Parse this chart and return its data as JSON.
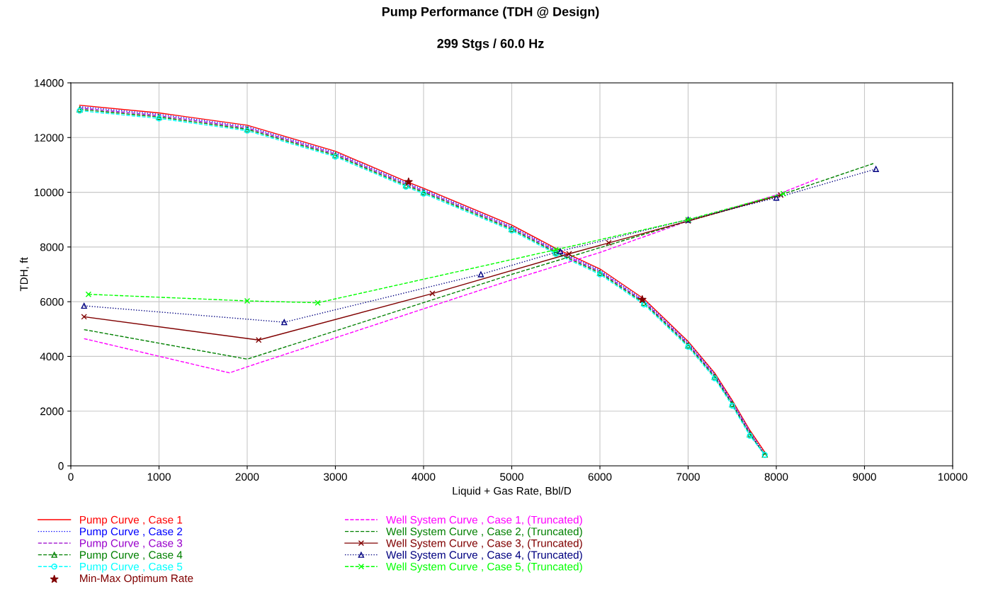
{
  "chart_data": {
    "type": "line",
    "title": "Pump Performance (TDH @ Design)",
    "subtitle": "299 Stgs / 60.0 Hz",
    "xlabel": "Liquid + Gas Rate, Bbl/D",
    "ylabel": "TDH, ft",
    "xlim": [
      0,
      10000
    ],
    "xticks": [
      0,
      1000,
      2000,
      3000,
      4000,
      5000,
      6000,
      7000,
      8000,
      9000,
      10000
    ],
    "ylim": [
      0,
      14000
    ],
    "yticks": [
      0,
      2000,
      4000,
      6000,
      8000,
      10000,
      12000,
      14000
    ],
    "grid": true,
    "legend": "bottom",
    "series": [
      {
        "name": "Pump Curve , Case 1",
        "color": "#ff0000",
        "line_style": "solid",
        "marker": "none",
        "x": [
          100,
          1000,
          2000,
          3000,
          3800,
          4000,
          5000,
          5500,
          6000,
          6500,
          7000,
          7300,
          7500,
          7700,
          7880
        ],
        "values": [
          13180,
          12900,
          12450,
          11500,
          10400,
          10150,
          8800,
          7950,
          7200,
          6100,
          4550,
          3400,
          2400,
          1300,
          450
        ]
      },
      {
        "name": "Pump Curve , Case 2",
        "color": "#0000ff",
        "line_style": "dotted",
        "marker": "none",
        "x": [
          100,
          1000,
          2000,
          3000,
          3800,
          4000,
          5000,
          5500,
          6000,
          6500,
          7000,
          7300,
          7500,
          7700,
          7870
        ],
        "values": [
          13130,
          12850,
          12400,
          11450,
          10350,
          10100,
          8750,
          7900,
          7150,
          6050,
          4500,
          3350,
          2350,
          1250,
          430
        ]
      },
      {
        "name": "Pump Curve , Case 3",
        "color": "#9900cc",
        "line_style": "dashed",
        "marker": "none",
        "x": [
          100,
          1000,
          2000,
          3000,
          3800,
          4000,
          5000,
          5500,
          6000,
          6500,
          7000,
          7300,
          7500,
          7700,
          7860
        ],
        "values": [
          13080,
          12800,
          12350,
          11400,
          10300,
          10050,
          8700,
          7850,
          7100,
          6000,
          4450,
          3300,
          2300,
          1200,
          420
        ]
      },
      {
        "name": "Pump Curve , Case 4",
        "color": "#008000",
        "line_style": "dashed",
        "marker": "triangle",
        "x": [
          100,
          1000,
          2000,
          3000,
          3800,
          4000,
          5000,
          5500,
          6000,
          6500,
          7000,
          7300,
          7500,
          7700,
          7870
        ],
        "values": [
          13030,
          12750,
          12300,
          11350,
          10250,
          10000,
          8650,
          7800,
          7050,
          5950,
          4400,
          3250,
          2250,
          1150,
          410
        ]
      },
      {
        "name": "Pump Curve , Case 5",
        "color": "#00ffff",
        "line_style": "dashed",
        "marker": "circle",
        "x": [
          100,
          1000,
          2000,
          3000,
          3800,
          4000,
          5000,
          5500,
          6000,
          6500,
          7000,
          7300,
          7500,
          7700,
          7870
        ],
        "values": [
          12980,
          12700,
          12250,
          11300,
          10200,
          9950,
          8600,
          7750,
          7000,
          5900,
          4350,
          3200,
          2200,
          1100,
          400
        ]
      },
      {
        "name": "Min-Max Optimum Rate",
        "type": "scatter",
        "color": "#800000",
        "marker": "star",
        "x": [
          3830,
          6480
        ],
        "values": [
          10380,
          6080
        ]
      },
      {
        "name": "Well System Curve , Case 1, (Truncated)",
        "color": "#ff00ff",
        "line_style": "dashed",
        "marker": "none",
        "x": [
          150,
          1800,
          2000,
          5000,
          6000,
          7000,
          8000,
          8470
        ],
        "values": [
          4650,
          3400,
          3620,
          6800,
          7800,
          8950,
          9900,
          10500
        ]
      },
      {
        "name": "Well System Curve , Case 2, (Truncated)",
        "color": "#008000",
        "line_style": "dashed",
        "marker": "none",
        "x": [
          150,
          2000,
          5000,
          7000,
          8000,
          9100
        ],
        "values": [
          4980,
          3900,
          7000,
          8950,
          9850,
          11050
        ]
      },
      {
        "name": "Well System Curve , Case 3, (Truncated)",
        "color": "#800000",
        "line_style": "solid",
        "marker": "cross",
        "x": [
          150,
          2130,
          4100,
          5650,
          6100,
          7000,
          8050
        ],
        "values": [
          5450,
          4600,
          6300,
          7750,
          8150,
          8950,
          9900
        ]
      },
      {
        "name": "Well System Curve , Case 4, (Truncated)",
        "color": "#000080",
        "line_style": "dotted",
        "marker": "triangle",
        "x": [
          150,
          2420,
          4650,
          5550,
          7000,
          8000,
          9130
        ],
        "values": [
          5850,
          5250,
          7000,
          7850,
          9000,
          9800,
          10850
        ]
      },
      {
        "name": "Well System Curve , Case 5, (Truncated)",
        "color": "#00ff00",
        "line_style": "dashed",
        "marker": "cross",
        "x": [
          200,
          2000,
          2800,
          5500,
          7000,
          8080
        ],
        "values": [
          6270,
          6030,
          5960,
          7900,
          9000,
          9950
        ]
      }
    ]
  }
}
